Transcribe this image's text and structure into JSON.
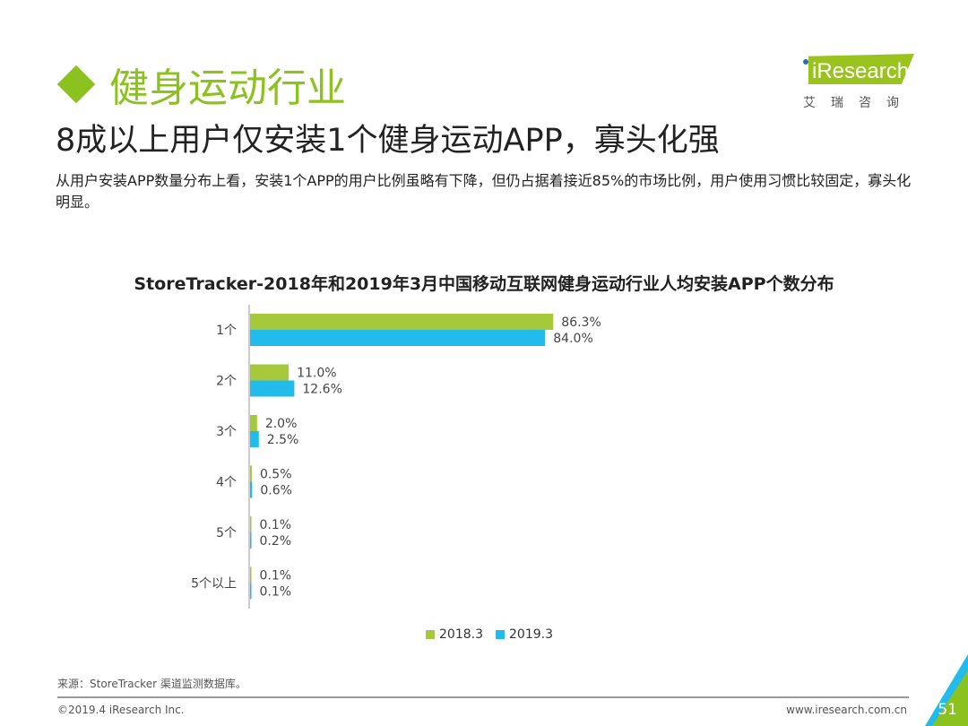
{
  "header": {
    "title": "健身运动行业",
    "subtitle": "8成以上用户仅安装1个健身运动APP，寡头化强",
    "description": "从用户安装APP数量分布上看，安装1个APP的用户比例虽略有下降，但仍占据着接近85%的市场比例，用户使用习惯比较固定，寡头化明显。"
  },
  "logo": {
    "text": "iResearch",
    "cn": "艾瑞咨询"
  },
  "chart_data": {
    "type": "bar",
    "orientation": "horizontal",
    "title": "StoreTracker-2018年和2019年3月中国移动互联网健身运动行业人均安装APP个数分布",
    "categories": [
      "1个",
      "2个",
      "3个",
      "4个",
      "5个",
      "5个以上"
    ],
    "series": [
      {
        "name": "2018.3",
        "color": "#a5c93a",
        "values": [
          86.3,
          11.0,
          2.0,
          0.5,
          0.1,
          0.1
        ],
        "labels": [
          "86.3%",
          "11.0%",
          "2.0%",
          "0.5%",
          "0.1%",
          "0.1%"
        ]
      },
      {
        "name": "2019.3",
        "color": "#21bcec",
        "values": [
          84.0,
          12.6,
          2.5,
          0.6,
          0.2,
          0.1
        ],
        "labels": [
          "84.0%",
          "12.6%",
          "2.5%",
          "0.6%",
          "0.2%",
          "0.1%"
        ]
      }
    ],
    "xlim": [
      0,
      100
    ],
    "legend": "bottom",
    "grid": false
  },
  "footer": {
    "source": "来源：StoreTracker 渠道监测数据库。",
    "copyright": "©2019.4 iResearch Inc.",
    "url": "www.iresearch.com.cn",
    "page": "51"
  }
}
